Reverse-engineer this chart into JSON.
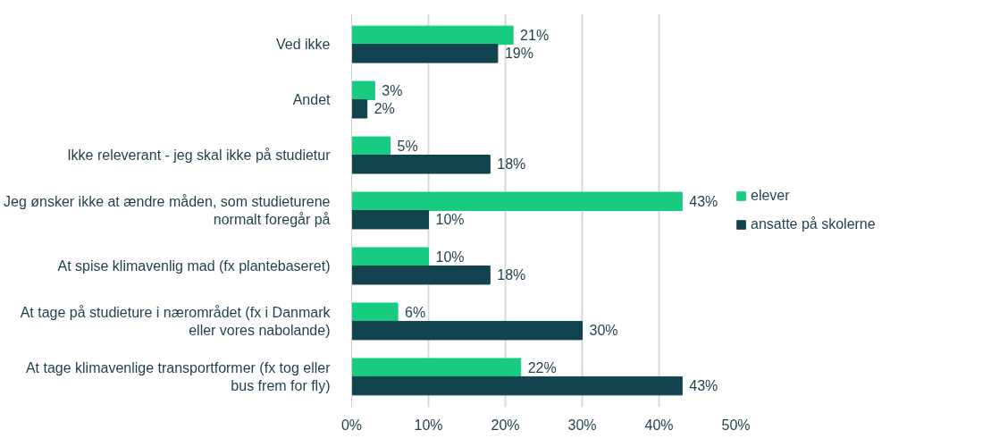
{
  "chart_data": {
    "type": "bar",
    "orientation": "horizontal",
    "categories": [
      "Ved ikke",
      "Andet",
      "Ikke releverant - jeg skal ikke på studietur",
      "Jeg ønsker ikke at ændre måden, som studieturene normalt foregår på",
      "At spise klimavenlig mad (fx plantebaseret)",
      "At tage på studieture i nærområdet (fx i Danmark eller vores nabolande)",
      "At tage klimavenlige transportformer (fx tog eller bus frem for fly)"
    ],
    "series": [
      {
        "name": "elever",
        "color": "#17cc80",
        "values": [
          21,
          3,
          5,
          43,
          10,
          6,
          22
        ],
        "value_labels": [
          "21%",
          "3%",
          "5%",
          "43%",
          "10%",
          "6%",
          "22%"
        ]
      },
      {
        "name": "ansatte på skolerne",
        "color": "#11434f",
        "values": [
          19,
          2,
          18,
          10,
          18,
          30,
          43
        ],
        "value_labels": [
          "19%",
          "2%",
          "18%",
          "10%",
          "18%",
          "30%",
          "43%"
        ]
      }
    ],
    "xlim": [
      0,
      50
    ],
    "xticks": [
      {
        "value": 0,
        "label": "0%"
      },
      {
        "value": 10,
        "label": "10%"
      },
      {
        "value": 20,
        "label": "20%"
      },
      {
        "value": 30,
        "label": "30%"
      },
      {
        "value": 40,
        "label": "40%"
      },
      {
        "value": 50,
        "label": "50%"
      }
    ],
    "grid": "x",
    "legend": "right"
  }
}
